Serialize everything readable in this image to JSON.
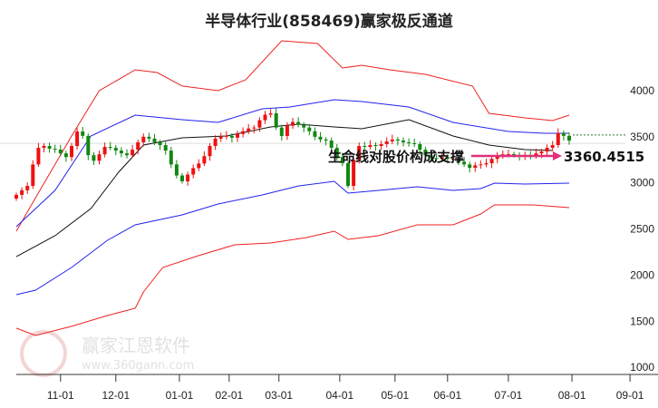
{
  "chart_data": {
    "type": "candlestick",
    "title": "半导体行业(858469)赢家极反通道",
    "xlabel": "",
    "ylabel": "",
    "ylim": [
      1000,
      4300
    ],
    "yticks": [
      1000,
      1500,
      2000,
      2500,
      3000,
      3500,
      4000
    ],
    "xticks": [
      {
        "label": "11-01",
        "bar": 16
      },
      {
        "label": "12-01",
        "bar": 36
      },
      {
        "label": "01-01",
        "bar": 59
      },
      {
        "label": "02-01",
        "bar": 77
      },
      {
        "label": "03-01",
        "bar": 95
      },
      {
        "label": "04-01",
        "bar": 117
      },
      {
        "label": "05-01",
        "bar": 137
      },
      {
        "label": "06-01",
        "bar": 156
      },
      {
        "label": "07-01",
        "bar": 178
      },
      {
        "label": "08-01",
        "bar": 201
      },
      {
        "label": "09-01",
        "bar": 222
      }
    ],
    "bar_step": 2,
    "closes": [
      2870,
      2920,
      2967,
      3200,
      3380,
      3400,
      3370,
      3361,
      3320,
      3280,
      3400,
      3558,
      3510,
      3300,
      3240,
      3310,
      3390,
      3380,
      3350,
      3320,
      3300,
      3360,
      3440,
      3500,
      3480,
      3440,
      3410,
      3350,
      3200,
      3080,
      3017,
      3090,
      3160,
      3210,
      3290,
      3400,
      3480,
      3500,
      3510,
      3490,
      3530,
      3560,
      3590,
      3600,
      3680,
      3740,
      3754,
      3600,
      3508,
      3620,
      3660,
      3630,
      3600,
      3560,
      3500,
      3470,
      3459,
      3380,
      3280,
      3213,
      2967,
      3250,
      3400,
      3390,
      3410,
      3400,
      3420,
      3450,
      3470,
      3459,
      3440,
      3430,
      3420,
      3360,
      3300,
      3270,
      3262,
      3280,
      3260,
      3262,
      3230,
      3200,
      3164,
      3190,
      3200,
      3213,
      3260,
      3300,
      3310,
      3312,
      3300,
      3290,
      3300,
      3290,
      3320,
      3340,
      3380,
      3410,
      3540,
      3510,
      3459
    ],
    "series": [
      {
        "name": "upper-outer",
        "color": "#ee2222",
        "points": [
          [
            0,
            2476
          ],
          [
            7,
            2840
          ],
          [
            20,
            3508
          ],
          [
            30,
            4000
          ],
          [
            43,
            4226
          ],
          [
            51,
            4197
          ],
          [
            60,
            4050
          ],
          [
            73,
            4000
          ],
          [
            83,
            4118
          ],
          [
            96,
            4541
          ],
          [
            109,
            4511
          ],
          [
            118,
            4246
          ],
          [
            125,
            4275
          ],
          [
            135,
            4226
          ],
          [
            148,
            4177
          ],
          [
            165,
            4050
          ],
          [
            171,
            3754
          ],
          [
            184,
            3705
          ],
          [
            194,
            3676
          ],
          [
            200,
            3735
          ]
        ]
      },
      {
        "name": "upper-inner",
        "color": "#2222ee",
        "points": [
          [
            0,
            2525
          ],
          [
            14,
            2918
          ],
          [
            27,
            3508
          ],
          [
            43,
            3735
          ],
          [
            60,
            3685
          ],
          [
            73,
            3656
          ],
          [
            89,
            3803
          ],
          [
            99,
            3823
          ],
          [
            115,
            3902
          ],
          [
            125,
            3882
          ],
          [
            142,
            3823
          ],
          [
            158,
            3656
          ],
          [
            178,
            3558
          ],
          [
            191,
            3538
          ],
          [
            200,
            3538
          ]
        ]
      },
      {
        "name": "life-line",
        "color": "#111111",
        "points": [
          [
            0,
            2200
          ],
          [
            14,
            2427
          ],
          [
            27,
            2722
          ],
          [
            37,
            3115
          ],
          [
            46,
            3410
          ],
          [
            60,
            3489
          ],
          [
            76,
            3508
          ],
          [
            92,
            3607
          ],
          [
            102,
            3636
          ],
          [
            115,
            3607
          ],
          [
            125,
            3587
          ],
          [
            142,
            3685
          ],
          [
            158,
            3508
          ],
          [
            171,
            3410
          ],
          [
            184,
            3361
          ],
          [
            194,
            3351
          ]
        ]
      },
      {
        "name": "lower-inner",
        "color": "#2222ee",
        "points": [
          [
            0,
            1788
          ],
          [
            7,
            1837
          ],
          [
            20,
            2083
          ],
          [
            33,
            2378
          ],
          [
            43,
            2545
          ],
          [
            60,
            2653
          ],
          [
            73,
            2771
          ],
          [
            89,
            2869
          ],
          [
            102,
            2967
          ],
          [
            115,
            3017
          ],
          [
            120,
            2889
          ],
          [
            131,
            2918
          ],
          [
            145,
            2958
          ],
          [
            158,
            2918
          ],
          [
            168,
            2938
          ],
          [
            173,
            2997
          ],
          [
            184,
            2987
          ],
          [
            200,
            2997
          ]
        ]
      },
      {
        "name": "lower-outer",
        "color": "#ee2222",
        "points": [
          [
            0,
            1424
          ],
          [
            7,
            1345
          ],
          [
            20,
            1444
          ],
          [
            33,
            1561
          ],
          [
            43,
            1640
          ],
          [
            46,
            1817
          ],
          [
            53,
            2083
          ],
          [
            66,
            2211
          ],
          [
            79,
            2328
          ],
          [
            92,
            2348
          ],
          [
            105,
            2407
          ],
          [
            115,
            2476
          ],
          [
            120,
            2387
          ],
          [
            131,
            2427
          ],
          [
            145,
            2545
          ],
          [
            158,
            2545
          ],
          [
            168,
            2663
          ],
          [
            173,
            2761
          ],
          [
            187,
            2761
          ],
          [
            200,
            2732
          ]
        ]
      }
    ],
    "annotations": {
      "support_text": "生命线对股价构成支撑",
      "support_value": "3360.4515",
      "arrow_color": "#e0307a"
    },
    "colors": {
      "up": "#ee1111",
      "down": "#118811"
    }
  },
  "watermark": {
    "logo": "江赢恩家",
    "name": "赢家江恩软件",
    "url": "www.360gann.com"
  }
}
